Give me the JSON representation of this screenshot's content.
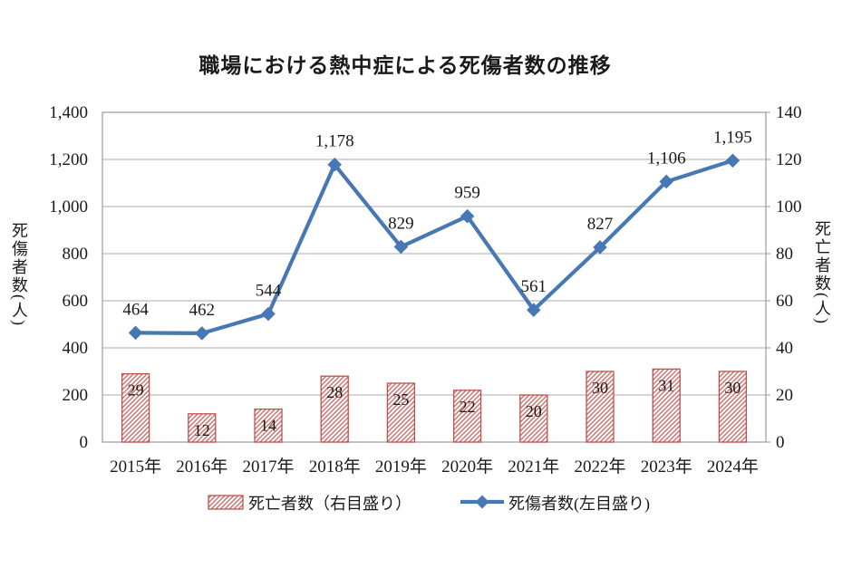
{
  "title": "職場における熱中症による死傷者数の推移",
  "chart_data": {
    "type": "combo-bar-line",
    "title": "職場における熱中症による死傷者数の推移",
    "categories": [
      "2015年",
      "2016年",
      "2017年",
      "2018年",
      "2019年",
      "2020年",
      "2021年",
      "2022年",
      "2023年",
      "2024年"
    ],
    "series": [
      {
        "name": "死亡者数（右目盛り）",
        "type": "bar",
        "axis": "right",
        "values": [
          29,
          12,
          14,
          28,
          25,
          22,
          20,
          30,
          31,
          30
        ],
        "labels": [
          "29",
          "12",
          "14",
          "28",
          "25",
          "22",
          "20",
          "30",
          "31",
          "30"
        ],
        "style": "red-diagonal-hatch"
      },
      {
        "name": "死傷者数(左目盛り)",
        "type": "line",
        "axis": "left",
        "values": [
          464,
          462,
          544,
          1178,
          829,
          959,
          561,
          827,
          1106,
          1195
        ],
        "labels": [
          "464",
          "462",
          "544",
          "1,178",
          "829",
          "959",
          "561",
          "827",
          "1,106",
          "1,195"
        ],
        "marker": "diamond"
      }
    ],
    "left_axis": {
      "title": "死傷者数(人)",
      "min": 0,
      "max": 1400,
      "step": 200,
      "tick_labels": [
        "1,400",
        "1,200",
        "1,000",
        "800",
        "600",
        "400",
        "200",
        "0"
      ]
    },
    "right_axis": {
      "title": "死亡者数(人)",
      "min": 0,
      "max": 140,
      "step": 20,
      "tick_labels": [
        "140",
        "120",
        "100",
        "80",
        "60",
        "40",
        "20",
        "0"
      ]
    },
    "grid": true,
    "legend_position": "bottom"
  },
  "legend": {
    "items": [
      {
        "label": "死亡者数（右目盛り）",
        "swatch": "hatched-bar"
      },
      {
        "label": "死傷者数(左目盛り)",
        "swatch": "line-diamond"
      }
    ]
  },
  "colors": {
    "line": "#4878B4",
    "line_marker": "#4878B4",
    "bar_border": "#C0504D",
    "bar_hatch": "#CD6E6B",
    "bar_fill_bg": "#FFFFFF",
    "grid": "#ABABAB",
    "axis_frame": "#9B9B9B",
    "text": "#1A1A1A"
  }
}
